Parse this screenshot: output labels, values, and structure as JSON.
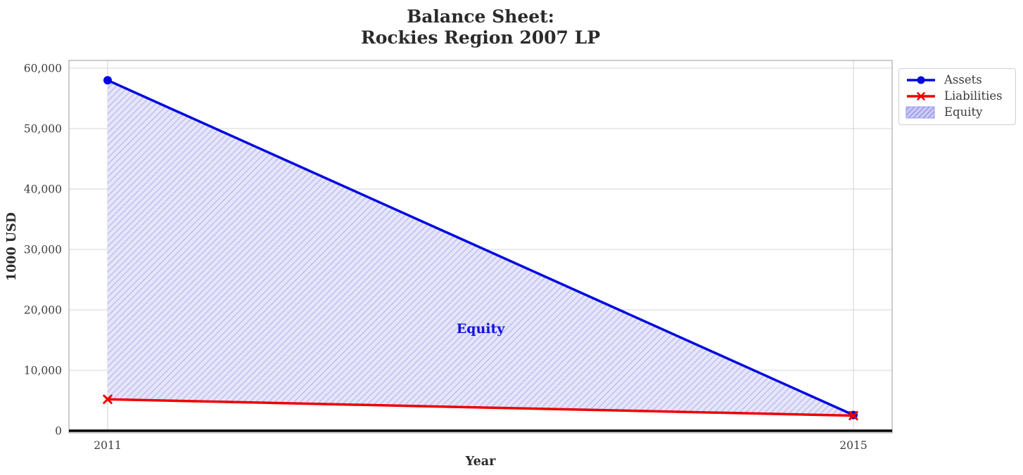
{
  "title": {
    "line1": "Balance Sheet:",
    "line2": "Rockies Region 2007 LP"
  },
  "axes": {
    "x_label": "Year",
    "y_label": "1000 USD"
  },
  "legend": {
    "items": [
      {
        "label": "Assets"
      },
      {
        "label": "Liabilities"
      },
      {
        "label": "Equity"
      }
    ]
  },
  "chart_data": {
    "type": "line",
    "title": "Balance Sheet:\nRockies Region 2007 LP",
    "xlabel": "Year",
    "ylabel": "1000 USD",
    "x": [
      2011,
      2015
    ],
    "xtick_labels": [
      "2011",
      "2015"
    ],
    "ylim": [
      0,
      60000
    ],
    "yticks": [
      0,
      10000,
      20000,
      30000,
      40000,
      50000,
      60000
    ],
    "ytick_labels": [
      "0",
      "10,000",
      "20,000",
      "30,000",
      "40,000",
      "50,000",
      "60,000"
    ],
    "grid": true,
    "legend_position": "outside upper right",
    "series": [
      {
        "name": "Assets",
        "values": [
          58000,
          2600
        ],
        "color": "#0008e0",
        "marker": "circle"
      },
      {
        "name": "Liabilities",
        "values": [
          5200,
          2500
        ],
        "color": "#ee0000",
        "marker": "x"
      }
    ],
    "fill_between": {
      "name": "Equity",
      "between": [
        "Assets",
        "Liabilities"
      ],
      "facecolor": "#e6e6fb",
      "hatch": "//",
      "hatch_color": "#c4c4f1",
      "legend_hatch_color": "#9a9aea",
      "legend_facecolor": "#ccccf5"
    },
    "annotation": {
      "text": "Equity",
      "x": 2013,
      "y": 17000,
      "color": "#1212dd"
    },
    "zero_line": {
      "y": 0,
      "color": "#000000"
    },
    "colors": {
      "grid": "#d5d5d5",
      "spine": "#b0b0b0",
      "title_text": "#2b2b2b",
      "tick_text": "#3d3d3d"
    }
  }
}
